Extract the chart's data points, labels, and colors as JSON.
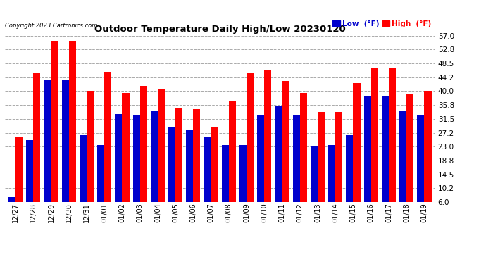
{
  "title": "Outdoor Temperature Daily High/Low 20230120",
  "copyright": "Copyright 2023 Cartronics.com",
  "legend_low_label": "Low  (°F)",
  "legend_high_label": "High  (°F)",
  "low_color": "#0000cc",
  "high_color": "#ff0000",
  "background_color": "#ffffff",
  "grid_color": "#aaaaaa",
  "ylim": [
    6.0,
    57.0
  ],
  "yticks": [
    6.0,
    10.2,
    14.5,
    18.8,
    23.0,
    27.2,
    31.5,
    35.8,
    40.0,
    44.2,
    48.5,
    52.8,
    57.0
  ],
  "dates": [
    "12/27",
    "12/28",
    "12/29",
    "12/30",
    "12/31",
    "01/01",
    "01/02",
    "01/03",
    "01/04",
    "01/05",
    "01/06",
    "01/07",
    "01/08",
    "01/09",
    "01/10",
    "01/11",
    "01/12",
    "01/13",
    "01/14",
    "01/15",
    "01/16",
    "01/17",
    "01/18",
    "01/19"
  ],
  "highs": [
    26.0,
    45.5,
    55.5,
    55.5,
    40.0,
    46.0,
    39.5,
    41.5,
    40.5,
    35.0,
    34.5,
    29.0,
    37.0,
    45.5,
    46.5,
    43.0,
    39.5,
    33.5,
    33.5,
    42.5,
    47.0,
    47.0,
    39.0,
    40.0
  ],
  "lows": [
    7.5,
    25.0,
    43.5,
    43.5,
    26.5,
    23.5,
    33.0,
    32.5,
    34.0,
    29.0,
    28.0,
    26.0,
    23.5,
    23.5,
    32.5,
    35.5,
    32.5,
    23.0,
    23.5,
    26.5,
    38.5,
    38.5,
    34.0,
    32.5
  ]
}
